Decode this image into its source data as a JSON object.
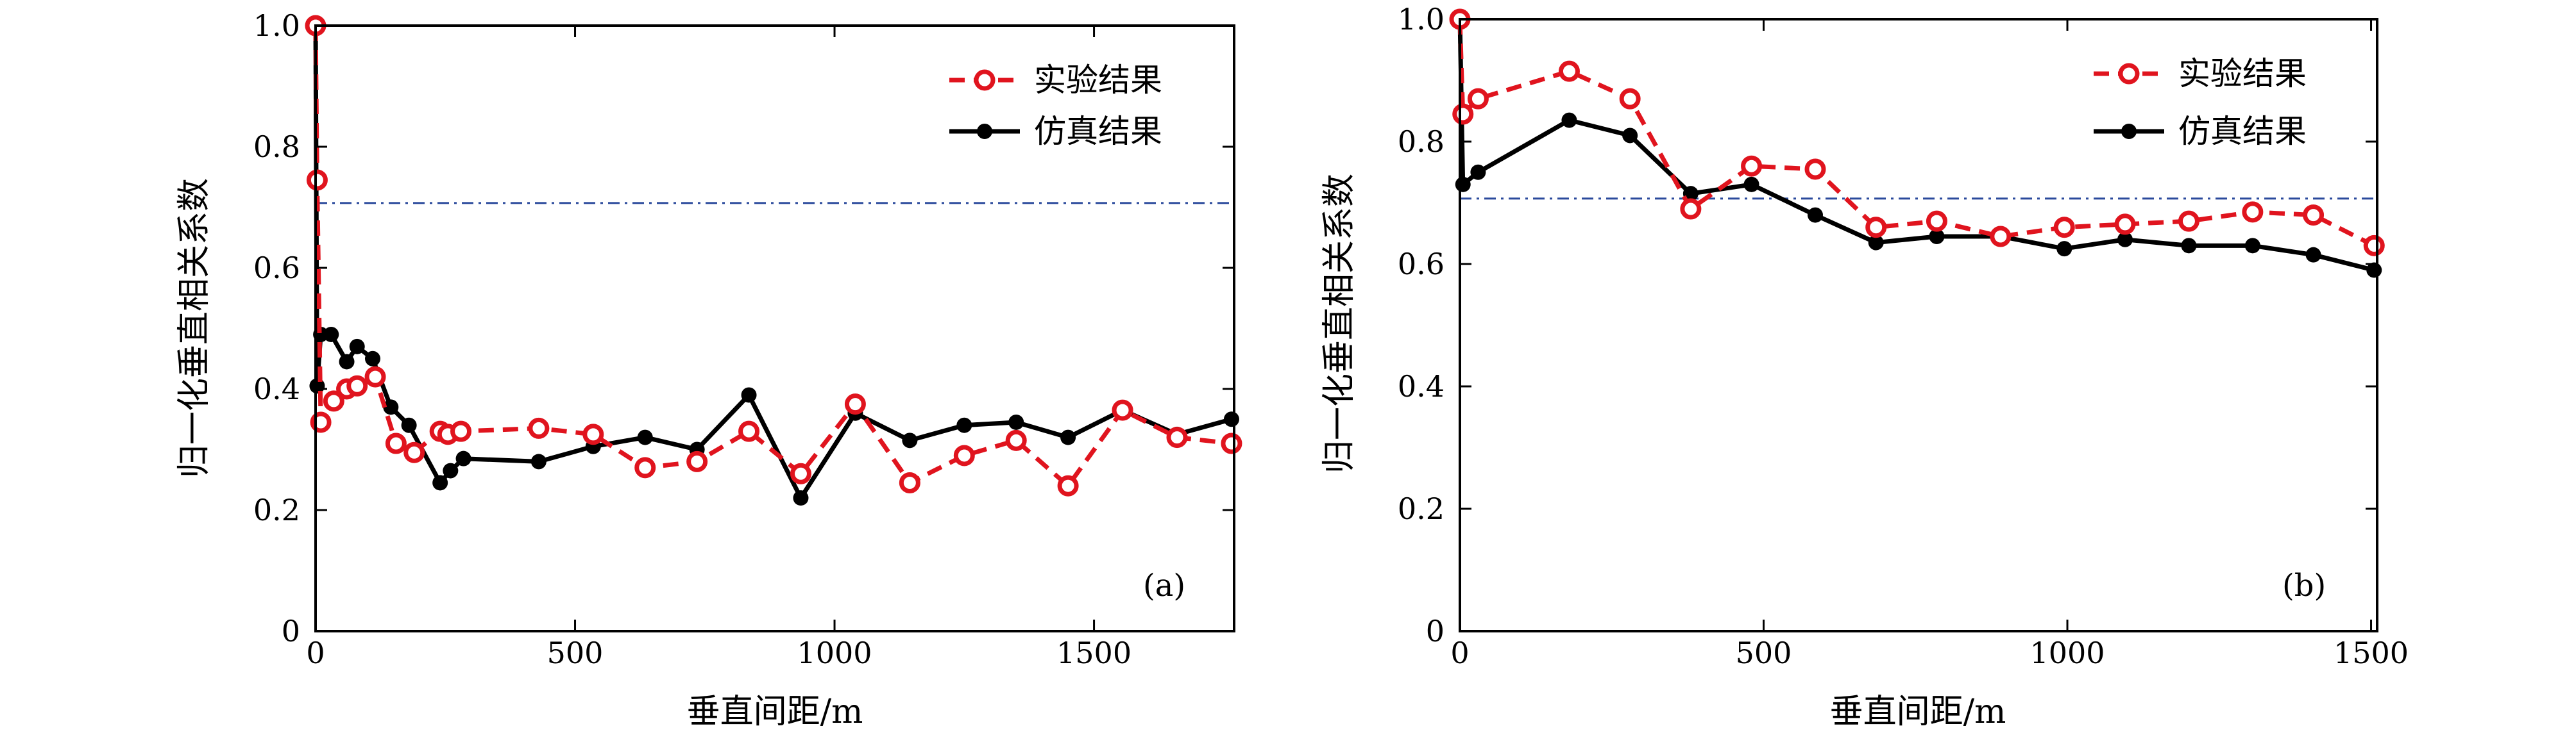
{
  "legend": {
    "experiment": "实验结果",
    "simulation": "仿真结果"
  },
  "colors": {
    "experiment": "#e0141e",
    "simulation": "#000000",
    "threshold": "#2b4a9c"
  },
  "chart_data": [
    {
      "type": "line",
      "panel_label": "(a)",
      "xlabel": "垂直间距/m",
      "ylabel": "归一化垂直相关系数",
      "xlim": [
        0,
        1770
      ],
      "ylim": [
        0,
        1.0
      ],
      "x_ticks": [
        0,
        500,
        1000,
        1500
      ],
      "x_tick_labels": [
        "0",
        "500",
        "1000",
        "1500"
      ],
      "y_ticks": [
        0,
        0.2,
        0.4,
        0.6,
        0.8,
        1.0
      ],
      "y_tick_labels": [
        "0",
        "0.2",
        "0.4",
        "0.6",
        "0.8",
        "1.0"
      ],
      "threshold": 0.707,
      "legend_position": "top-right",
      "series": [
        {
          "name": "实验结果",
          "x": [
            0,
            3,
            10,
            35,
            60,
            80,
            115,
            155,
            190,
            240,
            255,
            280,
            430,
            535,
            635,
            735,
            835,
            935,
            1040,
            1145,
            1250,
            1350,
            1450,
            1555,
            1660,
            1765
          ],
          "y": [
            1.0,
            0.745,
            0.345,
            0.38,
            0.4,
            0.405,
            0.42,
            0.31,
            0.295,
            0.33,
            0.325,
            0.33,
            0.335,
            0.325,
            0.27,
            0.28,
            0.33,
            0.26,
            0.375,
            0.245,
            0.29,
            0.315,
            0.24,
            0.365,
            0.32,
            0.31
          ]
        },
        {
          "name": "仿真结果",
          "x": [
            0,
            3,
            10,
            30,
            60,
            80,
            110,
            145,
            180,
            240,
            260,
            285,
            430,
            535,
            635,
            735,
            835,
            935,
            1040,
            1145,
            1250,
            1350,
            1450,
            1555,
            1660,
            1765
          ],
          "y": [
            1.0,
            0.405,
            0.49,
            0.49,
            0.445,
            0.47,
            0.45,
            0.37,
            0.34,
            0.245,
            0.265,
            0.285,
            0.28,
            0.305,
            0.32,
            0.3,
            0.39,
            0.22,
            0.36,
            0.315,
            0.34,
            0.345,
            0.32,
            0.365,
            0.325,
            0.35
          ]
        }
      ]
    },
    {
      "type": "line",
      "panel_label": "(b)",
      "xlabel": "垂直间距/m",
      "ylabel": "归一化垂直相关系数",
      "xlim": [
        0,
        1510
      ],
      "ylim": [
        0,
        1.0
      ],
      "x_ticks": [
        0,
        500,
        1000,
        1500
      ],
      "x_tick_labels": [
        "0",
        "500",
        "1000",
        "1500"
      ],
      "y_ticks": [
        0,
        0.2,
        0.4,
        0.6,
        0.8,
        1.0
      ],
      "y_tick_labels": [
        "0",
        "0.2",
        "0.4",
        "0.6",
        "0.8",
        "1.0"
      ],
      "threshold": 0.707,
      "legend_position": "top-right",
      "series": [
        {
          "name": "实验结果",
          "x": [
            0,
            5,
            30,
            180,
            280,
            380,
            480,
            585,
            685,
            785,
            890,
            995,
            1095,
            1200,
            1305,
            1405,
            1505
          ],
          "y": [
            1.0,
            0.845,
            0.87,
            0.915,
            0.87,
            0.69,
            0.76,
            0.755,
            0.66,
            0.67,
            0.645,
            0.66,
            0.665,
            0.67,
            0.685,
            0.68,
            0.63
          ]
        },
        {
          "name": "仿真结果",
          "x": [
            0,
            5,
            30,
            180,
            280,
            380,
            480,
            585,
            685,
            785,
            890,
            995,
            1095,
            1200,
            1305,
            1405,
            1505
          ],
          "y": [
            1.0,
            0.73,
            0.75,
            0.835,
            0.81,
            0.715,
            0.73,
            0.68,
            0.635,
            0.645,
            0.645,
            0.625,
            0.64,
            0.63,
            0.63,
            0.615,
            0.59
          ]
        }
      ]
    }
  ]
}
